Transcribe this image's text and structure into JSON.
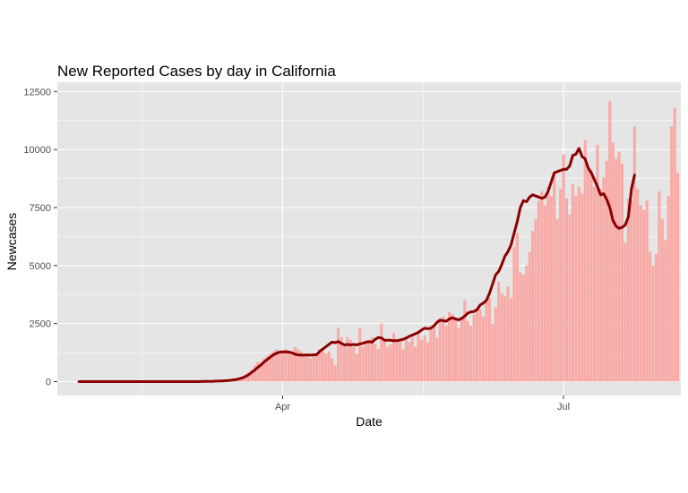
{
  "chart_data": {
    "type": "bar",
    "title": "New Reported Cases by day in California",
    "xlabel": "Date",
    "ylabel": "Newcases",
    "x_ticks": [
      "Apr",
      "Jul"
    ],
    "x_tick_dates": [
      "2020-04-01",
      "2020-07-01"
    ],
    "y_ticks": [
      "0",
      "2500",
      "5000",
      "7500",
      "10000",
      "12500"
    ],
    "ylim": [
      -600,
      12900
    ],
    "xlim": [
      "2020-01-19",
      "2020-08-08"
    ],
    "grid": true,
    "colors": {
      "bars": "#f8aaa6",
      "smooth_line": "#8b0000",
      "panel": "#e5e5e5",
      "grid": "#ffffff"
    },
    "series": [
      {
        "type": "bar",
        "start_date": "2020-01-26",
        "end_date": "2020-07-30",
        "values": [
          0,
          0,
          0,
          0,
          0,
          0,
          0,
          0,
          0,
          0,
          0,
          0,
          0,
          0,
          0,
          0,
          0,
          0,
          0,
          0,
          0,
          0,
          0,
          0,
          0,
          0,
          0,
          0,
          0,
          0,
          0,
          0,
          0,
          0,
          0,
          0,
          0,
          0,
          0,
          0,
          10,
          10,
          20,
          20,
          20,
          30,
          40,
          50,
          60,
          80,
          100,
          130,
          170,
          220,
          300,
          400,
          500,
          700,
          850,
          800,
          1000,
          1100,
          1200,
          1300,
          1400,
          1200,
          1300,
          1400,
          1300,
          1200,
          1500,
          1400,
          1300,
          1200,
          1100,
          1000,
          1100,
          1200,
          1400,
          1300,
          1200,
          1300,
          1000,
          700,
          2300,
          1900,
          1600,
          1900,
          1800,
          1500,
          1200,
          2300,
          1500,
          1700,
          1800,
          1900,
          1600,
          1400,
          2500,
          1800,
          1500,
          1600,
          2100,
          1700,
          1800,
          1400,
          1800,
          1700,
          1900,
          1500,
          2200,
          1800,
          2000,
          1700,
          2300,
          2400,
          1900,
          2600,
          2800,
          2400,
          3000,
          2900,
          2700,
          2300,
          2800,
          3500,
          2600,
          2400,
          2900,
          3200,
          3100,
          2800,
          3500,
          3600,
          2500,
          3200,
          4300,
          3800,
          3700,
          4100,
          3600,
          5800,
          6400,
          4700,
          4600,
          5000,
          5600,
          6500,
          7000,
          7800,
          8200,
          7600,
          8400,
          8000,
          9000,
          7000,
          8300,
          9800,
          7900,
          7200,
          8500,
          8000,
          8400,
          8100,
          10400,
          9300,
          9100,
          8400,
          10200,
          8300,
          8800,
          9500,
          12100,
          10300,
          9600,
          9900,
          9400,
          6000,
          7900,
          7800,
          11000,
          8300,
          7600,
          7400,
          7800,
          5600,
          5000,
          5500,
          8200,
          7000,
          6100,
          8000,
          11000,
          11800,
          9000
        ]
      },
      {
        "type": "line",
        "start_date": "2020-01-26",
        "end_date": "2020-07-30",
        "values": [
          0,
          0,
          0,
          0,
          0,
          0,
          0,
          0,
          0,
          0,
          0,
          0,
          0,
          0,
          0,
          0,
          0,
          0,
          0,
          0,
          0,
          0,
          0,
          0,
          0,
          0,
          0,
          0,
          0,
          0,
          0,
          0,
          0,
          0,
          0,
          0,
          0,
          0,
          0,
          0,
          5,
          5,
          10,
          10,
          15,
          20,
          25,
          30,
          40,
          50,
          70,
          90,
          120,
          160,
          220,
          300,
          400,
          500,
          620,
          720,
          850,
          950,
          1050,
          1150,
          1220,
          1270,
          1280,
          1280,
          1270,
          1240,
          1180,
          1150,
          1140,
          1140,
          1150,
          1140,
          1150,
          1160,
          1300,
          1400,
          1500,
          1600,
          1700,
          1680,
          1720,
          1650,
          1580,
          1600,
          1580,
          1600,
          1580,
          1620,
          1650,
          1700,
          1720,
          1700,
          1820,
          1900,
          1880,
          1780,
          1780,
          1780,
          1760,
          1760,
          1790,
          1820,
          1870,
          1950,
          2000,
          2060,
          2120,
          2220,
          2300,
          2280,
          2300,
          2400,
          2550,
          2650,
          2620,
          2600,
          2700,
          2750,
          2700,
          2660,
          2720,
          2820,
          2950,
          3000,
          3020,
          3100,
          3300,
          3380,
          3500,
          3800,
          4200,
          4600,
          4750,
          5050,
          5400,
          5600,
          5900,
          6400,
          6900,
          7500,
          7800,
          7750,
          7950,
          8050,
          8000,
          7950,
          7900,
          7950,
          8200,
          8600,
          9000,
          9050,
          9100,
          9150,
          9150,
          9300,
          9750,
          9800,
          10050,
          9700,
          9600,
          9200,
          9000,
          8700,
          8400,
          8050,
          8100,
          7850,
          7500,
          6950,
          6700,
          6600,
          6650,
          6750,
          7100,
          8300,
          8900
        ]
      }
    ]
  }
}
